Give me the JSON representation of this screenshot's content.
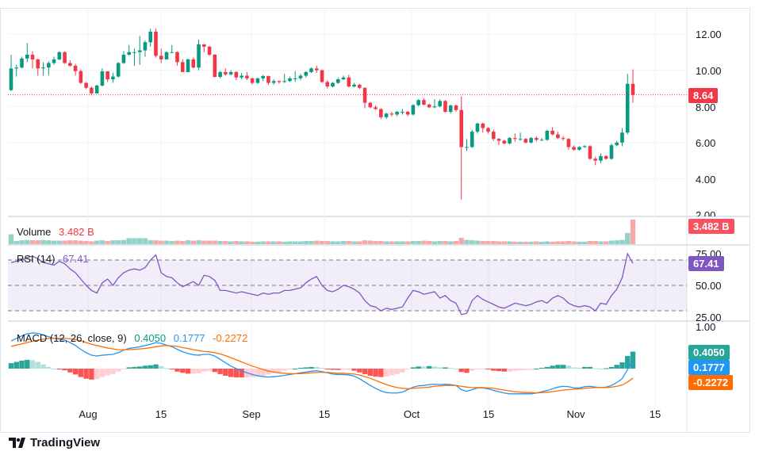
{
  "chart_data": {
    "type": "candlestick",
    "price_axis": {
      "ticks": [
        "12.00",
        "10.00",
        "8.00",
        "6.00",
        "4.00",
        "2.00"
      ],
      "range": [
        2,
        13
      ]
    },
    "time_axis": {
      "ticks": [
        "Aug",
        "15",
        "Sep",
        "15",
        "Oct",
        "15",
        "Nov",
        "15"
      ]
    },
    "last_price": "8.64",
    "colors": {
      "up": "#089981",
      "down": "#f23645",
      "volume_up": "#92d2c7",
      "volume_down": "#f7a9a7",
      "rsi": "#7e57c2",
      "macd": "#2196f3",
      "signal": "#ff6d00",
      "hist_up_strong": "#26a69a",
      "hist_up_weak": "#b2dfdb",
      "hist_down_strong": "#ff5252",
      "hist_down_weak": "#ffcdd2"
    },
    "ohlc": [
      [
        8.9,
        10.86,
        8.85,
        10.1
      ],
      [
        10.1,
        10.3,
        9.65,
        10.15
      ],
      [
        10.15,
        10.75,
        10.1,
        10.65
      ],
      [
        10.65,
        11.5,
        10.45,
        10.86
      ],
      [
        10.86,
        11.05,
        10.1,
        10.6
      ],
      [
        10.6,
        10.65,
        9.7,
        10.1
      ],
      [
        10.1,
        10.45,
        9.7,
        10.15
      ],
      [
        10.15,
        10.5,
        9.7,
        10.4
      ],
      [
        10.4,
        10.75,
        10.3,
        10.6
      ],
      [
        10.6,
        11.05,
        10.55,
        11.0
      ],
      [
        11.0,
        11.05,
        10.35,
        10.4
      ],
      [
        10.4,
        10.55,
        10.2,
        10.25
      ],
      [
        10.25,
        10.35,
        9.7,
        9.95
      ],
      [
        9.95,
        10.05,
        9.25,
        9.3
      ],
      [
        9.3,
        9.35,
        8.95,
        9.03
      ],
      [
        9.03,
        9.1,
        8.65,
        8.72
      ],
      [
        8.72,
        9.2,
        8.7,
        9.15
      ],
      [
        9.15,
        10.1,
        9.1,
        9.94
      ],
      [
        9.94,
        9.95,
        9.35,
        9.5
      ],
      [
        9.5,
        9.85,
        9.3,
        9.65
      ],
      [
        9.65,
        10.45,
        9.6,
        10.4
      ],
      [
        10.4,
        11.05,
        10.35,
        10.86
      ],
      [
        10.86,
        11.4,
        10.8,
        11.0
      ],
      [
        11.0,
        11.2,
        10.25,
        11.0
      ],
      [
        11.0,
        11.9,
        10.3,
        11.1
      ],
      [
        11.1,
        11.65,
        10.75,
        11.55
      ],
      [
        11.55,
        12.3,
        11.3,
        12.13
      ],
      [
        12.13,
        12.3,
        10.7,
        10.8
      ],
      [
        10.8,
        11.2,
        10.4,
        10.6
      ],
      [
        10.6,
        11.05,
        10.6,
        11.0
      ],
      [
        11.0,
        11.4,
        10.95,
        11.0
      ],
      [
        11.0,
        11.05,
        10.25,
        10.45
      ],
      [
        10.45,
        10.6,
        9.9,
        9.9
      ],
      [
        9.9,
        10.65,
        9.9,
        10.6
      ],
      [
        10.6,
        10.7,
        10.1,
        10.15
      ],
      [
        10.15,
        11.7,
        10.0,
        11.43
      ],
      [
        11.43,
        11.45,
        11.0,
        11.3
      ],
      [
        11.3,
        11.35,
        10.8,
        10.86
      ],
      [
        10.86,
        10.9,
        9.6,
        9.63
      ],
      [
        9.63,
        9.95,
        9.55,
        9.9
      ],
      [
        9.9,
        10.1,
        9.7,
        9.77
      ],
      [
        9.77,
        10.0,
        9.7,
        9.9
      ],
      [
        9.9,
        9.95,
        9.45,
        9.6
      ],
      [
        9.6,
        9.85,
        9.5,
        9.7
      ],
      [
        9.7,
        9.9,
        9.45,
        9.55
      ],
      [
        9.55,
        9.6,
        9.2,
        9.3
      ],
      [
        9.3,
        9.6,
        9.25,
        9.55
      ],
      [
        9.55,
        9.75,
        9.4,
        9.68
      ],
      [
        9.68,
        9.7,
        9.2,
        9.3
      ],
      [
        9.3,
        9.5,
        9.2,
        9.4
      ],
      [
        9.4,
        9.45,
        9.25,
        9.35
      ],
      [
        9.35,
        9.8,
        9.3,
        9.4
      ],
      [
        9.4,
        9.65,
        9.35,
        9.55
      ],
      [
        9.55,
        9.95,
        9.35,
        9.55
      ],
      [
        9.55,
        9.8,
        9.45,
        9.7
      ],
      [
        9.7,
        9.95,
        9.6,
        9.9
      ],
      [
        9.9,
        10.15,
        9.85,
        10.1
      ],
      [
        10.1,
        10.25,
        9.85,
        10.0
      ],
      [
        10.0,
        10.05,
        9.3,
        9.35
      ],
      [
        9.35,
        9.45,
        9.0,
        9.1
      ],
      [
        9.1,
        9.35,
        9.05,
        9.3
      ],
      [
        9.3,
        9.6,
        9.25,
        9.5
      ],
      [
        9.5,
        9.7,
        9.45,
        9.6
      ],
      [
        9.6,
        9.75,
        9.05,
        9.1
      ],
      [
        9.1,
        9.3,
        9.05,
        9.2
      ],
      [
        9.2,
        9.25,
        8.95,
        9.03
      ],
      [
        9.03,
        9.05,
        7.9,
        8.2
      ],
      [
        8.2,
        8.25,
        7.9,
        7.95
      ],
      [
        7.95,
        8.05,
        7.8,
        7.85
      ],
      [
        7.85,
        7.9,
        7.3,
        7.4
      ],
      [
        7.4,
        7.65,
        7.3,
        7.6
      ],
      [
        7.6,
        7.7,
        7.45,
        7.55
      ],
      [
        7.55,
        7.75,
        7.45,
        7.7
      ],
      [
        7.7,
        7.85,
        7.55,
        7.7
      ],
      [
        7.7,
        7.75,
        7.45,
        7.55
      ],
      [
        7.55,
        8.12,
        7.5,
        8.07
      ],
      [
        8.07,
        8.4,
        8.0,
        8.35
      ],
      [
        8.35,
        8.45,
        8.05,
        8.1
      ],
      [
        8.1,
        8.15,
        7.9,
        7.95
      ],
      [
        7.95,
        8.4,
        7.9,
        8.0
      ],
      [
        8.0,
        8.4,
        7.95,
        8.3
      ],
      [
        8.3,
        8.35,
        7.65,
        7.7
      ],
      [
        7.7,
        8.1,
        7.6,
        8.05
      ],
      [
        8.05,
        8.1,
        7.7,
        7.8
      ],
      [
        7.8,
        8.55,
        2.85,
        5.75
      ],
      [
        5.75,
        6.2,
        5.55,
        5.75
      ],
      [
        5.75,
        6.7,
        5.7,
        6.6
      ],
      [
        6.6,
        7.1,
        6.5,
        7.05
      ],
      [
        7.05,
        7.1,
        6.55,
        6.8
      ],
      [
        6.8,
        6.85,
        6.5,
        6.6
      ],
      [
        6.6,
        6.7,
        6.1,
        6.2
      ],
      [
        6.2,
        6.25,
        5.85,
        6.1
      ],
      [
        6.1,
        6.15,
        5.9,
        5.95
      ],
      [
        5.95,
        6.3,
        5.9,
        6.25
      ],
      [
        6.25,
        6.5,
        6.05,
        6.2
      ],
      [
        6.2,
        6.55,
        6.1,
        6.2
      ],
      [
        6.2,
        6.25,
        5.95,
        6.0
      ],
      [
        6.0,
        6.3,
        5.95,
        6.25
      ],
      [
        6.25,
        6.35,
        6.05,
        6.15
      ],
      [
        6.15,
        6.25,
        6.1,
        6.15
      ],
      [
        6.15,
        6.7,
        6.1,
        6.65
      ],
      [
        6.65,
        6.85,
        6.4,
        6.45
      ],
      [
        6.45,
        6.6,
        6.2,
        6.25
      ],
      [
        6.25,
        6.35,
        6.1,
        6.2
      ],
      [
        6.2,
        6.25,
        5.6,
        5.75
      ],
      [
        5.75,
        5.85,
        5.55,
        5.6
      ],
      [
        5.6,
        5.8,
        5.55,
        5.75
      ],
      [
        5.75,
        5.85,
        5.7,
        5.8
      ],
      [
        5.8,
        5.85,
        5.05,
        5.1
      ],
      [
        5.1,
        5.2,
        4.75,
        5.0
      ],
      [
        5.0,
        5.4,
        4.85,
        5.25
      ],
      [
        5.25,
        5.3,
        5.05,
        5.1
      ],
      [
        5.1,
        5.95,
        5.05,
        5.85
      ],
      [
        5.85,
        6.1,
        5.8,
        6.0
      ],
      [
        6.0,
        6.8,
        5.8,
        6.55
      ],
      [
        6.55,
        9.8,
        6.45,
        9.25
      ],
      [
        9.25,
        10.05,
        8.2,
        8.64
      ]
    ],
    "volume": {
      "label": "Volume",
      "value": "3.482 B",
      "unit": "B",
      "values": [
        1.4,
        0.45,
        0.55,
        0.6,
        0.55,
        0.55,
        0.6,
        0.55,
        0.5,
        0.5,
        0.5,
        0.55,
        0.55,
        0.5,
        0.45,
        0.4,
        0.5,
        0.55,
        0.45,
        0.55,
        0.55,
        0.6,
        0.85,
        0.85,
        0.85,
        0.85,
        0.55,
        0.55,
        0.5,
        0.5,
        0.45,
        0.5,
        0.45,
        0.55,
        0.5,
        0.55,
        0.5,
        0.5,
        0.5,
        0.45,
        0.45,
        0.4,
        0.45,
        0.4,
        0.4,
        0.35,
        0.35,
        0.4,
        0.4,
        0.4,
        0.4,
        0.35,
        0.4,
        0.4,
        0.4,
        0.45,
        0.45,
        0.5,
        0.45,
        0.45,
        0.4,
        0.4,
        0.45,
        0.45,
        0.4,
        0.4,
        0.55,
        0.5,
        0.45,
        0.45,
        0.4,
        0.4,
        0.4,
        0.4,
        0.4,
        0.45,
        0.45,
        0.5,
        0.45,
        0.4,
        0.45,
        0.45,
        0.4,
        0.45,
        0.9,
        0.6,
        0.55,
        0.5,
        0.45,
        0.45,
        0.45,
        0.4,
        0.4,
        0.4,
        0.35,
        0.35,
        0.35,
        0.35,
        0.4,
        0.35,
        0.4,
        0.35,
        0.4,
        0.4,
        0.45,
        0.4,
        0.35,
        0.35,
        0.45,
        0.45,
        0.4,
        0.4,
        0.5,
        0.55,
        0.6,
        1.6,
        3.482
      ]
    },
    "rsi": {
      "label": "RSI (14)",
      "value": "67.41",
      "ticks": [
        "75.00",
        "50.00",
        "25.00"
      ],
      "bands": [
        70,
        50,
        30
      ],
      "values": [
        68,
        69,
        70,
        72,
        73,
        71,
        68,
        67,
        66,
        69,
        67,
        63,
        60,
        55,
        50,
        46,
        44,
        52,
        55,
        50,
        56,
        60,
        62,
        63,
        62,
        64,
        70,
        74,
        60,
        57,
        56,
        52,
        49,
        51,
        53,
        50,
        58,
        57,
        54,
        46,
        46,
        45,
        44,
        45,
        44,
        43,
        42,
        44,
        43,
        44,
        44,
        46,
        46,
        47,
        48,
        52,
        55,
        57,
        50,
        46,
        45,
        47,
        50,
        49,
        47,
        44,
        38,
        34,
        33,
        30,
        32,
        31,
        32,
        33,
        40,
        46,
        45,
        43,
        44,
        45,
        40,
        42,
        38,
        36,
        27,
        28,
        38,
        42,
        39,
        37,
        35,
        33,
        32,
        34,
        36,
        35,
        34,
        35,
        37,
        38,
        36,
        40,
        42,
        40,
        36,
        34,
        33,
        34,
        33,
        30,
        36,
        35,
        42,
        47,
        56,
        75,
        67.41
      ]
    },
    "macd": {
      "label": "MACD (12, 26, close, 9)",
      "hist_value": "0.4050",
      "macd_value": "0.1777",
      "signal_value": "-0.2272",
      "ticks": [
        "1.00"
      ],
      "macd": [
        0.66,
        0.72,
        0.78,
        0.83,
        0.85,
        0.84,
        0.8,
        0.76,
        0.72,
        0.7,
        0.68,
        0.62,
        0.55,
        0.46,
        0.38,
        0.32,
        0.3,
        0.32,
        0.33,
        0.34,
        0.38,
        0.44,
        0.48,
        0.5,
        0.52,
        0.55,
        0.58,
        0.62,
        0.6,
        0.56,
        0.52,
        0.46,
        0.4,
        0.36,
        0.33,
        0.32,
        0.34,
        0.34,
        0.3,
        0.22,
        0.14,
        0.06,
        0,
        -0.05,
        -0.1,
        -0.14,
        -0.17,
        -0.19,
        -0.2,
        -0.19,
        -0.18,
        -0.16,
        -0.14,
        -0.12,
        -0.1,
        -0.08,
        -0.06,
        -0.05,
        -0.07,
        -0.1,
        -0.13,
        -0.14,
        -0.14,
        -0.15,
        -0.18,
        -0.24,
        -0.32,
        -0.4,
        -0.47,
        -0.53,
        -0.57,
        -0.58,
        -0.58,
        -0.56,
        -0.5,
        -0.44,
        -0.41,
        -0.4,
        -0.38,
        -0.37,
        -0.38,
        -0.37,
        -0.38,
        -0.4,
        -0.5,
        -0.54,
        -0.5,
        -0.46,
        -0.46,
        -0.48,
        -0.52,
        -0.55,
        -0.58,
        -0.6,
        -0.6,
        -0.6,
        -0.6,
        -0.6,
        -0.58,
        -0.55,
        -0.52,
        -0.48,
        -0.44,
        -0.42,
        -0.43,
        -0.46,
        -0.46,
        -0.43,
        -0.42,
        -0.44,
        -0.45,
        -0.44,
        -0.4,
        -0.33,
        -0.24,
        -0.02,
        0.1777
      ],
      "signal": [
        0.53,
        0.56,
        0.59,
        0.62,
        0.65,
        0.68,
        0.7,
        0.72,
        0.72,
        0.72,
        0.72,
        0.71,
        0.69,
        0.66,
        0.62,
        0.58,
        0.55,
        0.52,
        0.49,
        0.47,
        0.45,
        0.45,
        0.45,
        0.46,
        0.47,
        0.48,
        0.5,
        0.52,
        0.54,
        0.55,
        0.54,
        0.53,
        0.5,
        0.48,
        0.45,
        0.43,
        0.41,
        0.4,
        0.38,
        0.35,
        0.31,
        0.26,
        0.21,
        0.16,
        0.11,
        0.06,
        0.02,
        -0.02,
        -0.06,
        -0.08,
        -0.1,
        -0.11,
        -0.12,
        -0.12,
        -0.12,
        -0.11,
        -0.1,
        -0.09,
        -0.09,
        -0.09,
        -0.1,
        -0.11,
        -0.11,
        -0.12,
        -0.13,
        -0.15,
        -0.19,
        -0.23,
        -0.28,
        -0.33,
        -0.38,
        -0.42,
        -0.45,
        -0.47,
        -0.48,
        -0.47,
        -0.46,
        -0.45,
        -0.44,
        -0.42,
        -0.41,
        -0.4,
        -0.4,
        -0.4,
        -0.42,
        -0.44,
        -0.45,
        -0.45,
        -0.45,
        -0.46,
        -0.47,
        -0.49,
        -0.51,
        -0.53,
        -0.55,
        -0.56,
        -0.57,
        -0.57,
        -0.58,
        -0.57,
        -0.56,
        -0.55,
        -0.53,
        -0.51,
        -0.5,
        -0.49,
        -0.48,
        -0.47,
        -0.46,
        -0.45,
        -0.45,
        -0.45,
        -0.44,
        -0.42,
        -0.39,
        -0.32,
        -0.2272
      ]
    }
  },
  "branding": {
    "logo_text": "TradingView"
  }
}
